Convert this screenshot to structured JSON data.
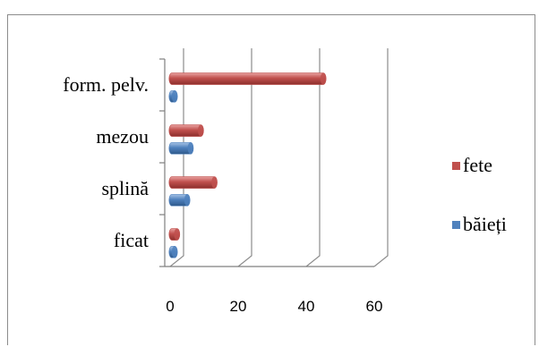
{
  "chart_data": {
    "type": "bar",
    "orientation": "horizontal",
    "style": "3d-cylinder",
    "categories": [
      "ficat",
      "splină",
      "mezou",
      "form. pelv."
    ],
    "series": [
      {
        "name": "băieți",
        "values": [
          1,
          5,
          6,
          0
        ],
        "color": "#4f81bd"
      },
      {
        "name": "fete",
        "values": [
          2,
          13,
          9,
          45
        ],
        "color": "#c0504d"
      }
    ],
    "xlim": [
      0,
      60
    ],
    "xticks": [
      0,
      20,
      40,
      60
    ],
    "grid": true,
    "legend_position": "right",
    "title": "",
    "xlabel": "",
    "ylabel": ""
  }
}
